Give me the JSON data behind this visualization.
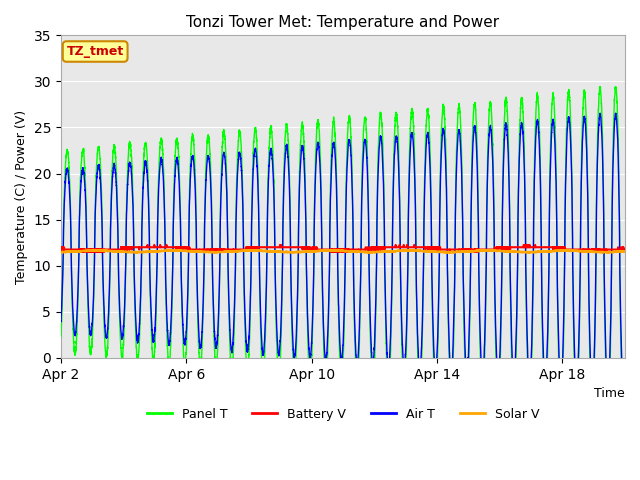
{
  "title": "Tonzi Tower Met: Temperature and Power",
  "xlabel": "Time",
  "ylabel": "Temperature (C) / Power (V)",
  "ylim": [
    0,
    35
  ],
  "yticks": [
    0,
    5,
    10,
    15,
    20,
    25,
    30,
    35
  ],
  "x_start_day": 2,
  "n_days": 18,
  "xtick_labels": [
    "Apr 2",
    "Apr 6",
    "Apr 10",
    "Apr 14",
    "Apr 18"
  ],
  "xtick_positions": [
    2,
    6,
    10,
    14,
    18
  ],
  "panel_color": "#00FF00",
  "battery_color": "#FF0000",
  "air_color": "#0000FF",
  "solar_color": "#FFA500",
  "bg_plot": "#E8E8E8",
  "bg_figure": "#FFFFFF",
  "legend_labels": [
    "Panel T",
    "Battery V",
    "Air T",
    "Solar V"
  ],
  "grid_color": "#FFFFFF",
  "annotation_text": "TZ_tmet",
  "annotation_bg": "#FFFF99",
  "annotation_border": "#CC8800"
}
